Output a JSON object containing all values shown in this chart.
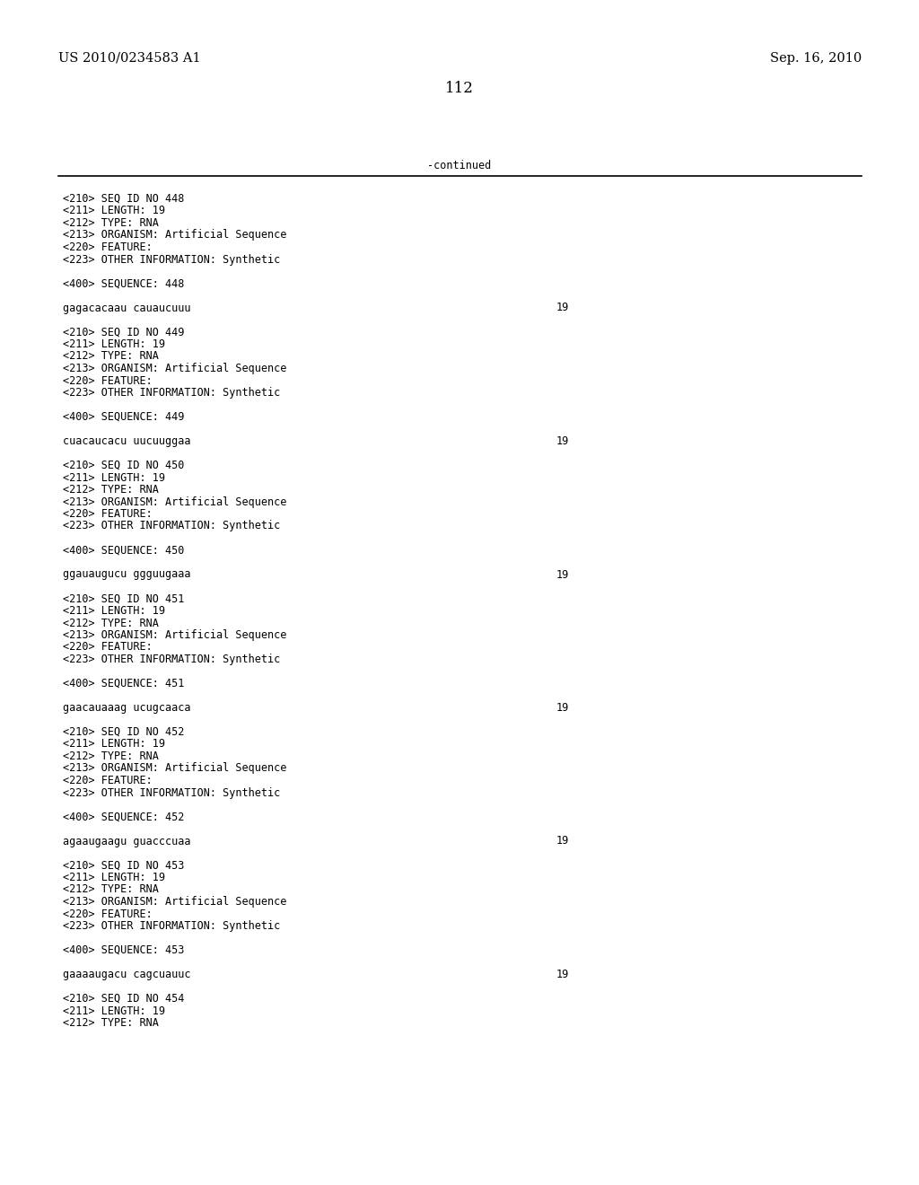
{
  "bg_color": "#ffffff",
  "header_left": "US 2010/0234583 A1",
  "header_right": "Sep. 16, 2010",
  "page_number": "112",
  "continued_label": "-continued",
  "entries": [
    {
      "seq_id": "448",
      "length": "19",
      "type": "RNA",
      "organism": "Artificial Sequence",
      "other_info": "Synthetic",
      "sequence": "gagacacaau cauaucuuu",
      "seq_length_val": "19",
      "show_full": true
    },
    {
      "seq_id": "449",
      "length": "19",
      "type": "RNA",
      "organism": "Artificial Sequence",
      "other_info": "Synthetic",
      "sequence": "cuacaucacu uucuuggaa",
      "seq_length_val": "19",
      "show_full": true
    },
    {
      "seq_id": "450",
      "length": "19",
      "type": "RNA",
      "organism": "Artificial Sequence",
      "other_info": "Synthetic",
      "sequence": "ggauaugucu ggguugaaa",
      "seq_length_val": "19",
      "show_full": true
    },
    {
      "seq_id": "451",
      "length": "19",
      "type": "RNA",
      "organism": "Artificial Sequence",
      "other_info": "Synthetic",
      "sequence": "gaacauaaag ucugcaaca",
      "seq_length_val": "19",
      "show_full": true
    },
    {
      "seq_id": "452",
      "length": "19",
      "type": "RNA",
      "organism": "Artificial Sequence",
      "other_info": "Synthetic",
      "sequence": "agaaugaagu guacccuaa",
      "seq_length_val": "19",
      "show_full": true
    },
    {
      "seq_id": "453",
      "length": "19",
      "type": "RNA",
      "organism": "Artificial Sequence",
      "other_info": "Synthetic",
      "sequence": "gaaaaugacu cagcuauuc",
      "seq_length_val": "19",
      "show_full": true
    },
    {
      "seq_id": "454",
      "length": "19",
      "type": "RNA",
      "organism": null,
      "other_info": null,
      "sequence": null,
      "seq_length_val": null,
      "show_full": false
    }
  ],
  "font_size_mono": 8.5,
  "font_size_header": 10.5,
  "font_size_page": 12
}
